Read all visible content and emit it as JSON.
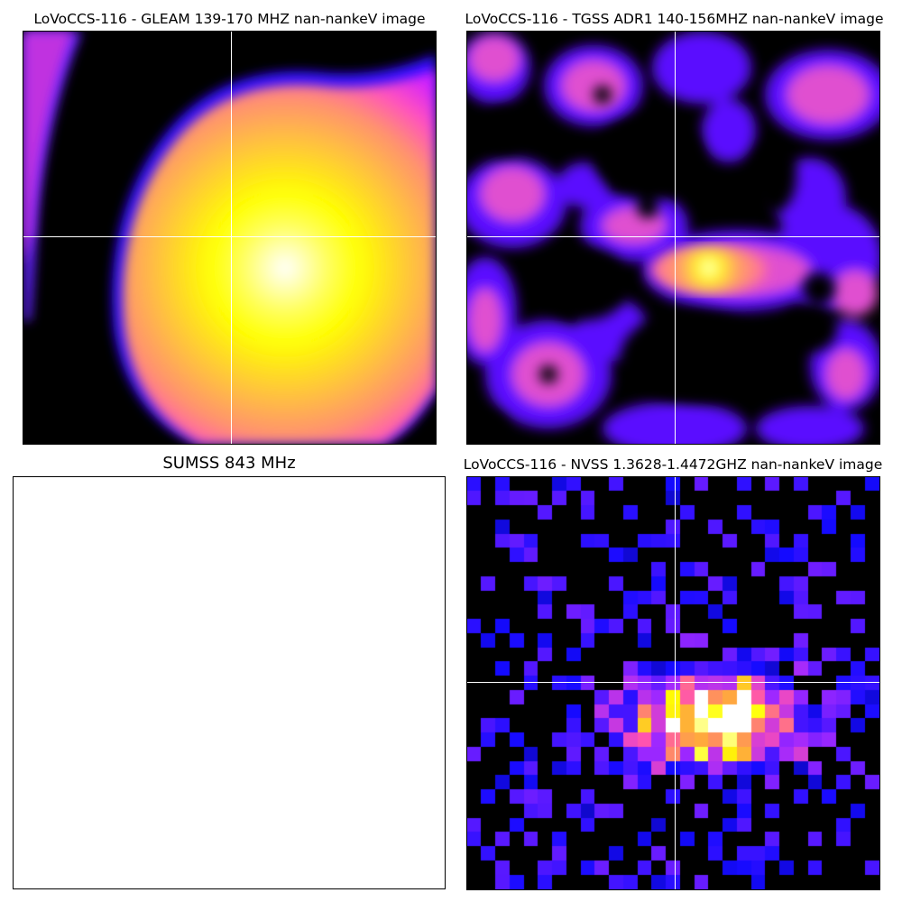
{
  "panels": [
    {
      "title": "LoVoCCS-116 -  GLEAM 139-170 MHZ nan-nankeV image",
      "colormap": "gnuplot2-like: black, blue, magenta, yellow, white",
      "crosshair": true
    },
    {
      "title": "LoVoCCS-116 -  TGSS ADR1 140-156MHZ nan-nankeV image",
      "colormap": "gnuplot2-like: black, blue, magenta, yellow, white",
      "crosshair": true
    },
    {
      "title": "SUMSS 843 MHz",
      "colormap": "none (empty)",
      "crosshair": false
    },
    {
      "title": "LoVoCCS-116 -  NVSS 1.3628-1.4472GHZ nan-nankeV image",
      "colormap": "gnuplot2-like: black, blue, magenta, yellow, white",
      "crosshair": true
    }
  ],
  "colors": {
    "background": "#000000",
    "crosshair": "#ffffff",
    "page": "#ffffff"
  }
}
